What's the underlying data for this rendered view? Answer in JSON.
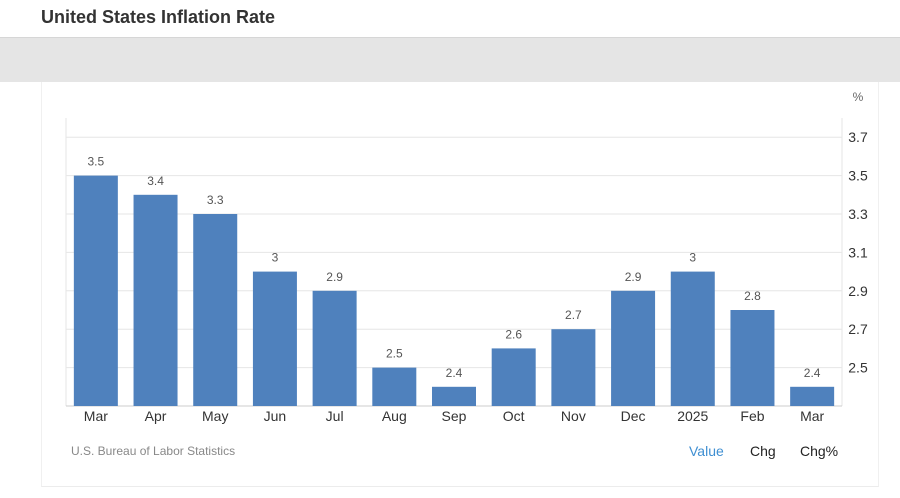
{
  "page": {
    "title": "United States Inflation Rate",
    "source": "U.S. Bureau of Labor Statistics",
    "toggles": [
      {
        "label": "Value",
        "active": true
      },
      {
        "label": "Chg",
        "active": false
      },
      {
        "label": "Chg%",
        "active": false
      }
    ]
  },
  "colors": {
    "bar": "#4f81bd",
    "active_toggle": "#3f8fd2",
    "grid": "#e6e6e6"
  },
  "chart_data": {
    "type": "bar",
    "categories": [
      "Mar",
      "Apr",
      "May",
      "Jun",
      "Jul",
      "Aug",
      "Sep",
      "Oct",
      "Nov",
      "Dec",
      "2025",
      "Feb",
      "Mar"
    ],
    "values": [
      3.5,
      3.4,
      3.3,
      3.0,
      2.9,
      2.5,
      2.4,
      2.6,
      2.7,
      2.9,
      3.0,
      2.8,
      2.4
    ],
    "data_labels": [
      "3.5",
      "3.4",
      "3.3",
      "3",
      "2.9",
      "2.5",
      "2.4",
      "2.6",
      "2.7",
      "2.9",
      "3",
      "2.8",
      "2.4"
    ],
    "yticks": [
      "3.7",
      "3.5",
      "3.3",
      "3.1",
      "2.9",
      "2.7",
      "2.5"
    ],
    "ylim": [
      2.3,
      3.8
    ],
    "yunit": "%",
    "yaxis_position": "right",
    "grid": true
  }
}
